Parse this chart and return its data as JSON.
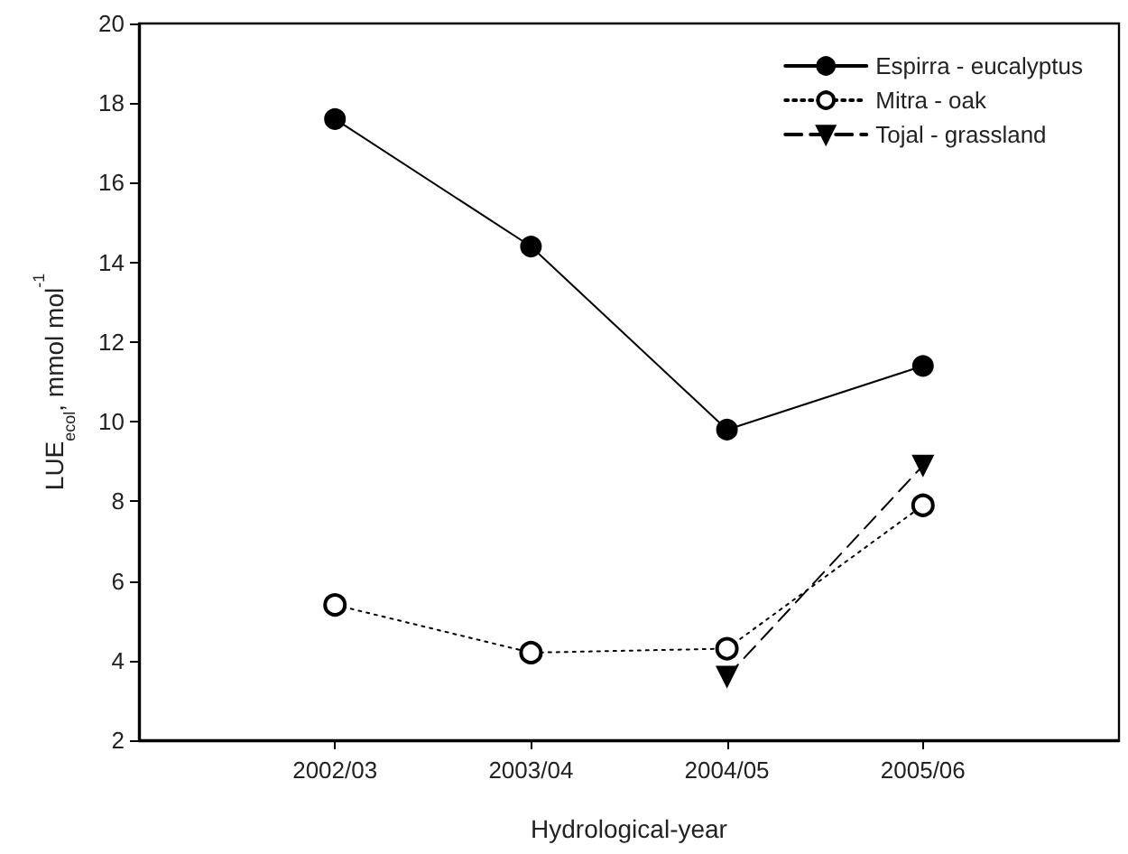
{
  "chart_data": {
    "type": "line",
    "xlabel": "Hydrological-year",
    "ylabel": "LUE$_{ecol}$, mmol mol$^{-1}$",
    "categories": [
      null,
      "2002/03",
      "2003/04",
      "2004/05",
      "2005/06",
      null
    ],
    "series": [
      {
        "name": "Espirra - eucalyptus",
        "color": "#000000",
        "marker": "circle",
        "line_style": "solid",
        "values": [
          null,
          17.6,
          14.4,
          9.8,
          11.4,
          null
        ]
      },
      {
        "name": "Mitra - oak",
        "color": "#000000",
        "marker": "open circle",
        "line_style": "dotted",
        "values": [
          null,
          5.4,
          4.2,
          4.3,
          7.9,
          null
        ]
      },
      {
        "name": "Tojal - grassland",
        "color": "#000000",
        "marker": "triangle_down",
        "line_style": "dashed",
        "values": [
          null,
          null,
          null,
          3.6,
          8.9,
          null
        ]
      }
    ],
    "ylim": [
      2,
      20
    ],
    "yticks": [
      2,
      4,
      6,
      8,
      10,
      12,
      14,
      16,
      18,
      20
    ],
    "grid": false,
    "legend": "top right"
  }
}
